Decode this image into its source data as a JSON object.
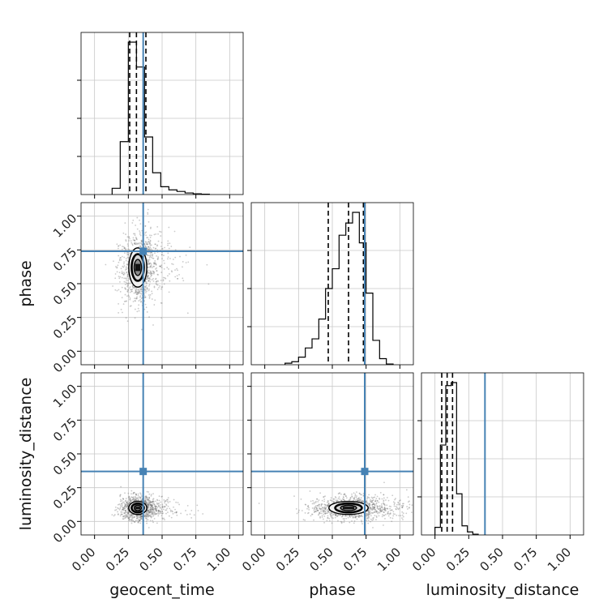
{
  "chart_data": {
    "type": "corner",
    "parameters": [
      "geocent_time",
      "phase",
      "luminosity_distance"
    ],
    "axis_range": [
      -0.1,
      1.1
    ],
    "tick_values": [
      0.0,
      0.25,
      0.5,
      0.75,
      1.0
    ],
    "tick_labels": [
      "0.00",
      "0.25",
      "0.50",
      "0.75",
      "1.00"
    ],
    "grid": true,
    "colors": {
      "truth": "#4682b4",
      "hist": "#000000",
      "grid": "#c8c8c8",
      "contour_fill": "#e8e8e8",
      "scatter": "#666666"
    },
    "truths": {
      "geocent_time": 0.36,
      "phase": 0.74,
      "luminosity_distance": 0.37
    },
    "quantiles": {
      "geocent_time": [
        0.26,
        0.31,
        0.38
      ],
      "phase": [
        0.47,
        0.62,
        0.73
      ],
      "luminosity_distance": [
        0.05,
        0.09,
        0.13
      ]
    },
    "histograms": {
      "geocent_time": {
        "bin_edges": [
          0.13,
          0.19,
          0.25,
          0.31,
          0.37,
          0.43,
          0.49,
          0.55,
          0.61,
          0.67,
          0.73,
          0.79,
          0.85
        ],
        "counts": [
          0.04,
          0.34,
          0.98,
          0.82,
          0.37,
          0.14,
          0.05,
          0.03,
          0.02,
          0.01,
          0.005,
          0.002
        ]
      },
      "phase": {
        "bin_edges": [
          0.15,
          0.2,
          0.25,
          0.3,
          0.35,
          0.4,
          0.45,
          0.5,
          0.55,
          0.6,
          0.65,
          0.7,
          0.75,
          0.8,
          0.85,
          0.9,
          0.95
        ],
        "counts": [
          0.01,
          0.02,
          0.05,
          0.11,
          0.17,
          0.3,
          0.5,
          0.63,
          0.85,
          0.93,
          1.0,
          0.8,
          0.47,
          0.16,
          0.04,
          0.005
        ]
      },
      "luminosity_distance": {
        "bin_edges": [
          0.0,
          0.04,
          0.08,
          0.12,
          0.16,
          0.2,
          0.24,
          0.28,
          0.32
        ],
        "counts": [
          0.05,
          0.59,
          0.98,
          1.0,
          0.27,
          0.06,
          0.02,
          0.005
        ]
      }
    },
    "pairs": [
      {
        "x": "geocent_time",
        "y": "phase",
        "center": [
          0.32,
          0.62
        ],
        "spread": [
          0.055,
          0.12
        ]
      },
      {
        "x": "geocent_time",
        "y": "luminosity_distance",
        "center": [
          0.32,
          0.1
        ],
        "spread": [
          0.055,
          0.04
        ]
      },
      {
        "x": "phase",
        "y": "luminosity_distance",
        "center": [
          0.62,
          0.1
        ],
        "spread": [
          0.12,
          0.04
        ]
      }
    ],
    "xlabels": [
      "geocent_time",
      "phase",
      "luminosity_distance"
    ],
    "ylabels": [
      "",
      "phase",
      "luminosity_distance"
    ]
  }
}
